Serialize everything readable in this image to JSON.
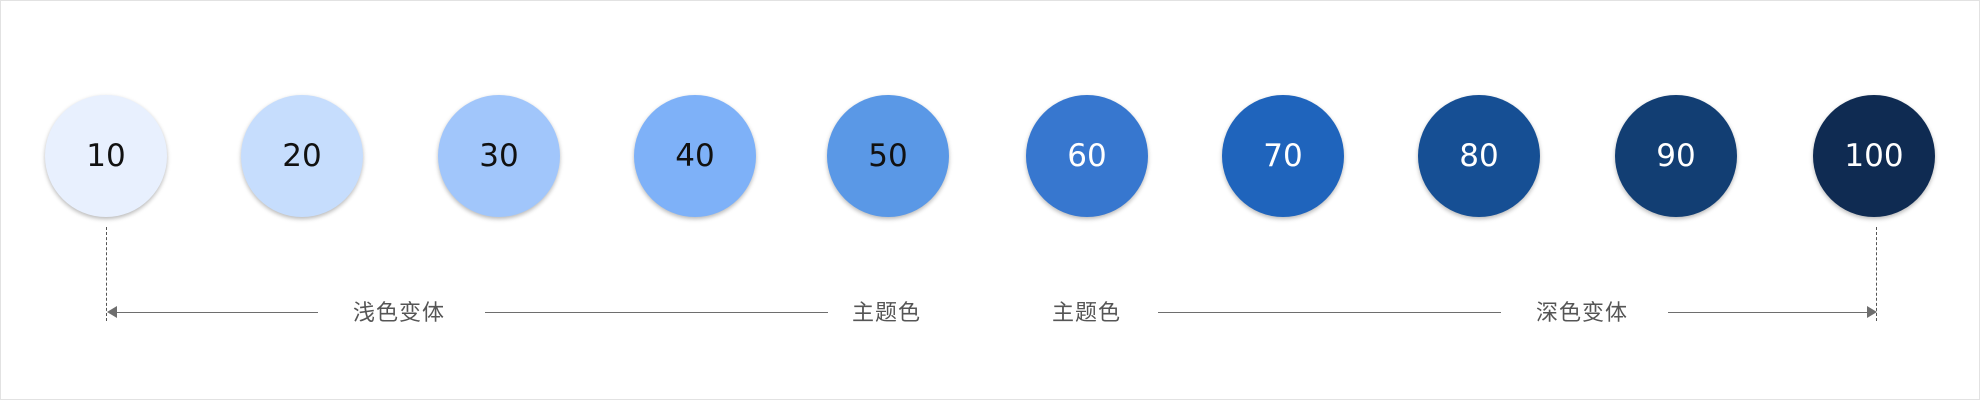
{
  "swatches": [
    {
      "label": "10",
      "color": "#e8f0fe",
      "text_color": "#111111"
    },
    {
      "label": "20",
      "color": "#c6ddfd",
      "text_color": "#111111"
    },
    {
      "label": "30",
      "color": "#a1c6fb",
      "text_color": "#111111"
    },
    {
      "label": "40",
      "color": "#7eb1f8",
      "text_color": "#111111"
    },
    {
      "label": "50",
      "color": "#5a98e6",
      "text_color": "#111111"
    },
    {
      "label": "60",
      "color": "#3777cf",
      "text_color": "#ffffff"
    },
    {
      "label": "70",
      "color": "#1f64bc",
      "text_color": "#ffffff"
    },
    {
      "label": "80",
      "color": "#164f94",
      "text_color": "#ffffff"
    },
    {
      "label": "90",
      "color": "#123e73",
      "text_color": "#ffffff"
    },
    {
      "label": "100",
      "color": "#0f2b52",
      "text_color": "#ffffff"
    }
  ],
  "annotations": {
    "light_variant": "浅色变体",
    "primary_left": "主题色",
    "primary_right": "主题色",
    "dark_variant": "深色变体"
  },
  "colors": {
    "line": "#6e6e6e",
    "label": "#555555"
  }
}
